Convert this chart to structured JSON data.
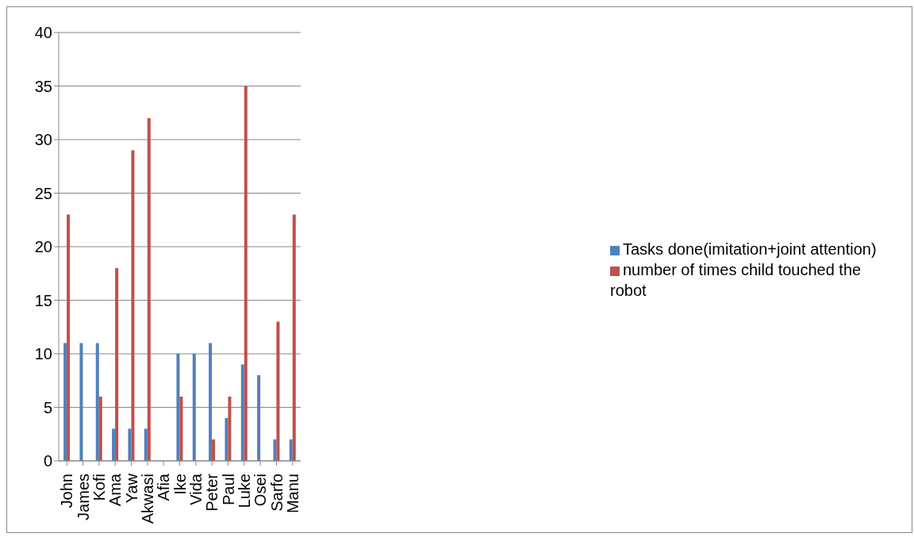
{
  "chart_data": {
    "type": "bar",
    "categories": [
      "John",
      "James",
      "Kofi",
      "Ama",
      "Yaw",
      "Akwasi",
      "Afia",
      "Ike",
      "Vida",
      "Peter",
      "Paul",
      "Luke",
      "Osei",
      "Sarfo",
      "Manu"
    ],
    "series": [
      {
        "name": "Tasks done(imitation+joint attention)",
        "color": "#4f81bd",
        "values": [
          11,
          11,
          11,
          3,
          3,
          3,
          0,
          10,
          10,
          11,
          4,
          9,
          8,
          2,
          2
        ]
      },
      {
        "name": "number of times child touched the robot",
        "color": "#c0504d",
        "values": [
          23,
          0,
          6,
          18,
          29,
          32,
          0,
          6,
          0,
          2,
          6,
          35,
          0,
          13,
          23
        ]
      }
    ],
    "ylim": [
      0,
      40
    ],
    "yticks": [
      0,
      5,
      10,
      15,
      20,
      25,
      30,
      35,
      40
    ],
    "grid": "y",
    "legend": "right"
  }
}
